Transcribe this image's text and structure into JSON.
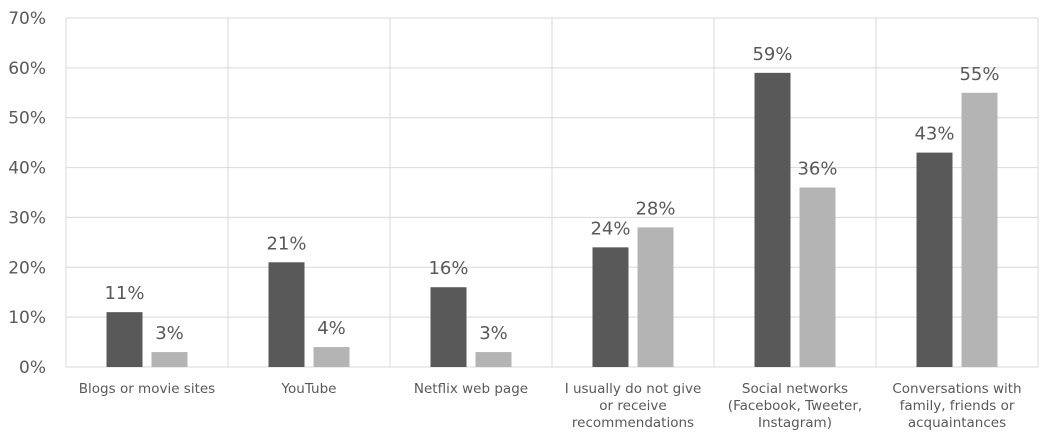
{
  "chart_data": {
    "type": "bar",
    "categories": [
      [
        "Blogs or movie sites"
      ],
      [
        "YouTube"
      ],
      [
        "Netflix web page"
      ],
      [
        "I usually do not give",
        "or receive",
        "recommendations"
      ],
      [
        "Social networks",
        "(Facebook, Tweeter,",
        "Instagram)"
      ],
      [
        "Conversations with",
        "family, friends or",
        "acquaintances"
      ]
    ],
    "series": [
      {
        "values": [
          11,
          21,
          16,
          24,
          59,
          43
        ],
        "labels": [
          "11%",
          "21%",
          "16%",
          "24%",
          "59%",
          "43%"
        ],
        "color": "#595959"
      },
      {
        "values": [
          3,
          4,
          3,
          28,
          36,
          55
        ],
        "labels": [
          "3%",
          "4%",
          "3%",
          "28%",
          "36%",
          "55%"
        ],
        "color": "#b4b4b4"
      }
    ],
    "y_ticks": [
      "0%",
      "10%",
      "20%",
      "30%",
      "40%",
      "50%",
      "60%",
      "70%"
    ],
    "ylim": [
      0,
      70
    ],
    "ylabel": "",
    "xlabel": "",
    "title": "",
    "grid": true,
    "legend": "none"
  }
}
